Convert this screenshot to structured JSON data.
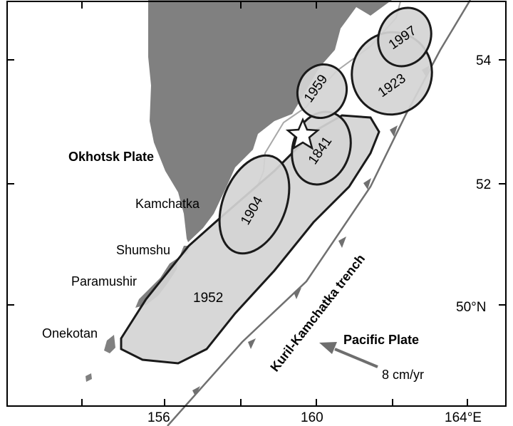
{
  "map": {
    "lat_ticks": [
      "54",
      "52",
      "50°N"
    ],
    "lon_ticks": [
      "156",
      "160",
      "164°E"
    ],
    "plates": {
      "okhotsk": "Okhotsk Plate",
      "pacific": "Pacific Plate"
    },
    "places": {
      "kamchatka": "Kamchatka",
      "shumshu": "Shumshu",
      "paramushir": "Paramushir",
      "onekotan": "Onekotan"
    },
    "trench_label": "Kuril-Kamchatka trench",
    "velocity_label": "8 cm/yr",
    "rupture_zones": [
      "1997",
      "1923",
      "1959",
      "1841",
      "1904",
      "1952"
    ],
    "epicenter_marker": "star",
    "colors": {
      "land": "#808080",
      "rupture_fill": "#d4d4d4",
      "rupture_outline": "#1a1a1a",
      "trench": "#707070",
      "arrow": "#6e6e6e"
    }
  }
}
